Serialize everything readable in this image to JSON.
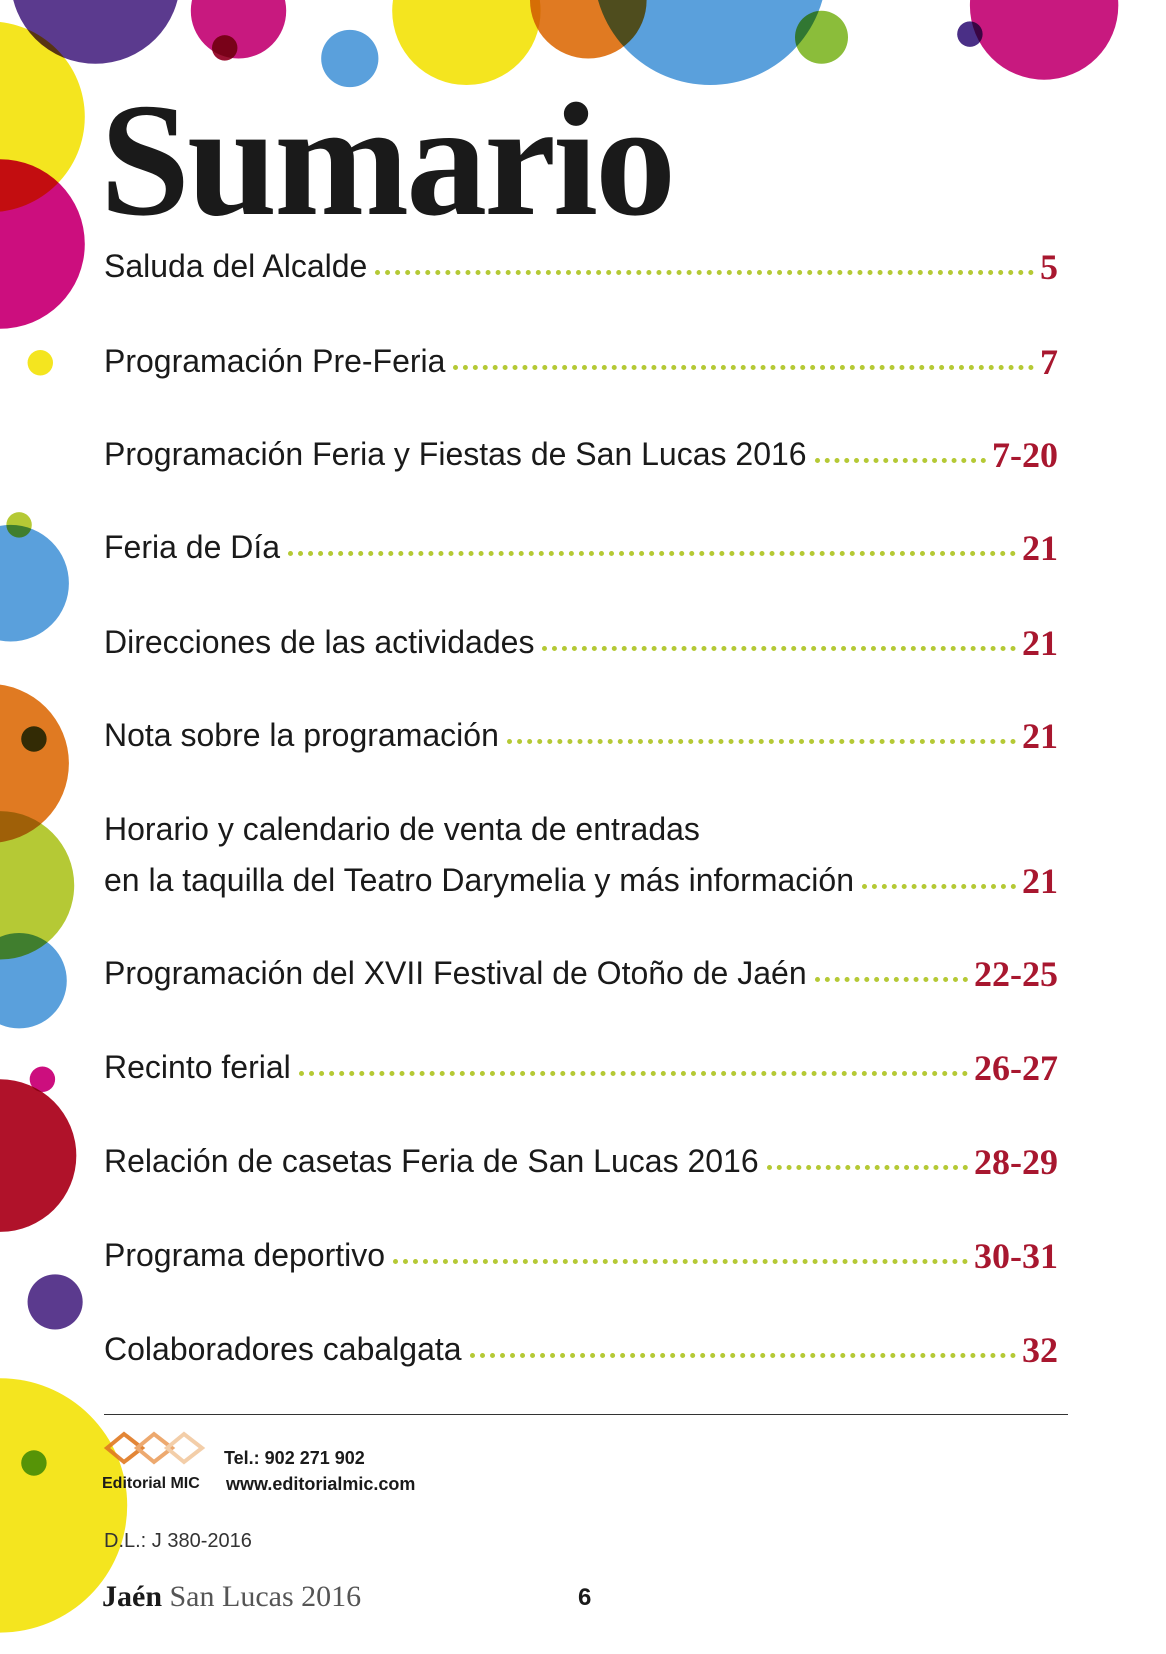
{
  "title": "Sumario",
  "entries": [
    {
      "lines": [
        "Saluda del Alcalde"
      ],
      "pages": "5"
    },
    {
      "lines": [
        "Programación Pre-Feria"
      ],
      "pages": "7"
    },
    {
      "lines": [
        "Programación Feria y Fiestas de San Lucas 2016"
      ],
      "pages": "7-20"
    },
    {
      "lines": [
        "Feria de Día"
      ],
      "pages": "21"
    },
    {
      "lines": [
        "Direcciones de las actividades"
      ],
      "pages": "21"
    },
    {
      "lines": [
        "Nota sobre la programación"
      ],
      "pages": "21"
    },
    {
      "lines": [
        "Horario y calendario de venta de entradas",
        "en la taquilla del Teatro Darymelia y más información"
      ],
      "pages": "21"
    },
    {
      "lines": [
        "Programación del XVII Festival de Otoño de Jaén"
      ],
      "pages": "22-25"
    },
    {
      "lines": [
        "Recinto ferial"
      ],
      "pages": "26-27"
    },
    {
      "lines": [
        "Relación de casetas Feria de San Lucas 2016"
      ],
      "pages": "28-29"
    },
    {
      "lines": [
        "Programa deportivo"
      ],
      "pages": "30-31"
    },
    {
      "lines": [
        "Colaboradores cabalgata"
      ],
      "pages": "32"
    }
  ],
  "publisher": {
    "name": "Editorial MIC",
    "tel": "Tel.: 902 271 902",
    "web": "www.editorialmic.com"
  },
  "legal": "D.L.: J 380-2016",
  "footer": {
    "city": "Jaén",
    "edition": "San Lucas 2016",
    "page": "6"
  }
}
